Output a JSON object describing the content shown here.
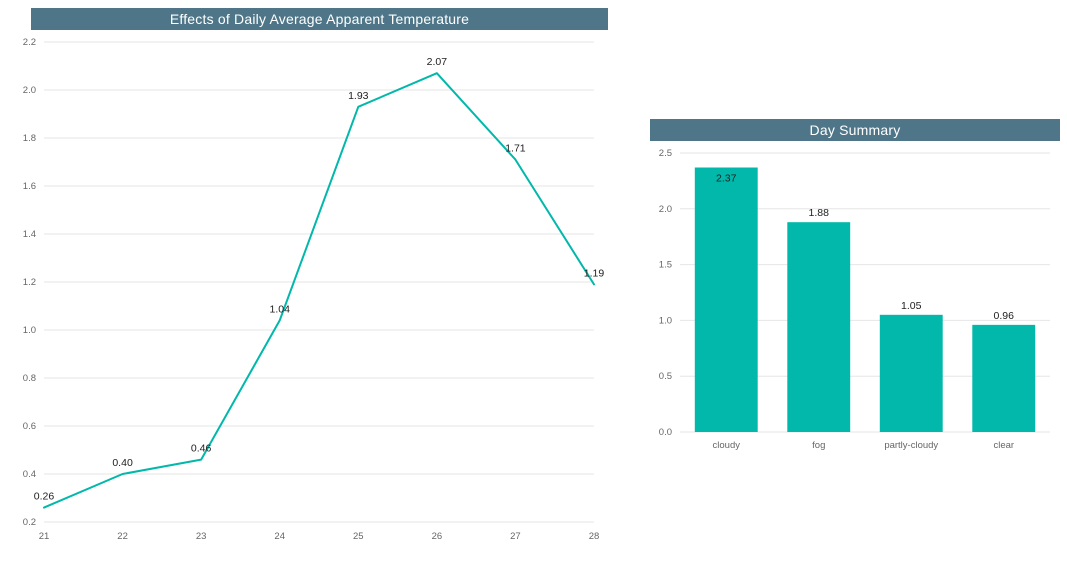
{
  "page": {
    "background": "#ffffff"
  },
  "colors": {
    "accent": "#01b8aa",
    "header_bg": "#4e7688",
    "header_text": "#ffffff",
    "grid": "#e6e6e6",
    "tick_text": "#666666",
    "label_text": "#212121"
  },
  "chart_data": [
    {
      "type": "line",
      "title": "Effects of Daily Average Apparent Temperature",
      "x": [
        21,
        22,
        23,
        24,
        25,
        26,
        27,
        28
      ],
      "values": [
        0.26,
        0.4,
        0.46,
        1.04,
        1.93,
        2.07,
        1.71,
        1.19
      ],
      "labels": [
        "0.26",
        "0.40",
        "0.46",
        "1.04",
        "1.93",
        "2.07",
        "1.71",
        "1.19"
      ],
      "xlabel": "",
      "ylabel": "",
      "ylim": [
        0.2,
        2.2
      ],
      "ytick_step": 0.2,
      "grid": true,
      "legend": "none",
      "color": "#01b8aa"
    },
    {
      "type": "bar",
      "title": "Day Summary",
      "categories": [
        "cloudy",
        "fog",
        "partly-cloudy",
        "clear"
      ],
      "values": [
        2.37,
        1.88,
        1.05,
        0.96
      ],
      "labels": [
        "2.37",
        "1.88",
        "1.05",
        "0.96"
      ],
      "xlabel": "",
      "ylabel": "",
      "ylim": [
        0,
        2.5
      ],
      "ytick_step": 0.5,
      "grid": true,
      "legend": "none",
      "color": "#01b8aa"
    }
  ]
}
